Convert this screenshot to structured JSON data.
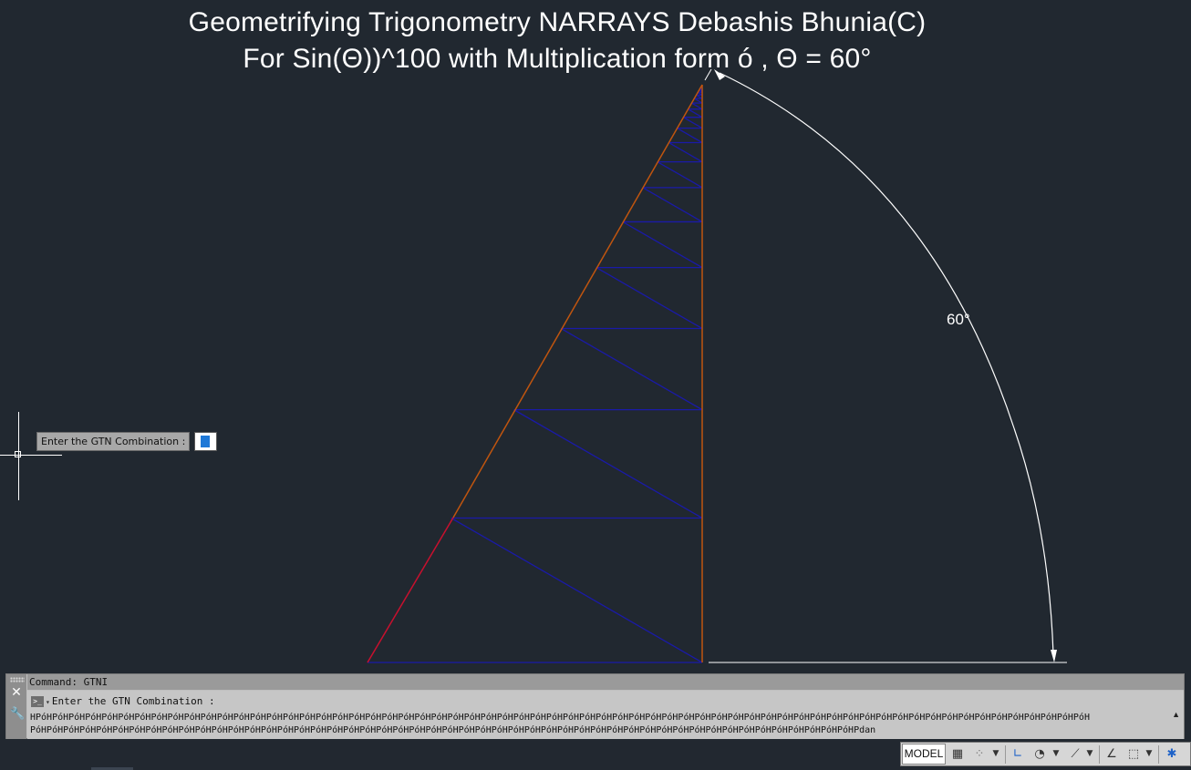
{
  "drawing": {
    "title_line_1": "Geometrifying Trigonometry NARRAYS Debashis Bhunia(C)",
    "title_line_2": "For Sin(Θ))^100 with Multiplication form ó , Θ = 60°",
    "angle_label": "60°",
    "colors": {
      "background": "#212830",
      "hypotenuse_upper": "#c0550f",
      "hypotenuse_lower": "#c8102e",
      "vertical_side": "#c0550f",
      "zigzag": "#1a1aa8",
      "dimension": "#ffffff"
    }
  },
  "dynamic_input": {
    "prompt": "Enter the GTN Combination :",
    "value": ""
  },
  "command_line": {
    "history": "Command: GTNI",
    "prompt": "Enter the GTN Combination :",
    "input_line_1": "HPóHPóHPóHPóHPóHPóHPóHPóHPóHPóHPóHPóHPóHPóHPóHPóHPóHPóHPóHPóHPóHPóHPóHPóHPóHPóHPóHPóHPóHPóHPóHPóHPóHPóHPóHPóHPóHPóHPóHPóHPóHPóHPóHPóHPóHPóHPóHPóHPóHPóHPóHPóHPóHPóHPóHPóHPóHPóHPóHPóHPóHPóHPóHPóH",
    "input_line_2": "PóHPóHPóHPóHPóHPóHPóHPóHPóHPóHPóHPóHPóHPóHPóHPóHPóHPóHPóHPóHPóHPóHPóHPóHPóHPóHPóHPóHPóHPóHPóHPóHPóHPóHPóHPóHPóHPóHPóHPóHPóHPóHPóHPóHPóHPóHPóHPóHPóHPóHPdan",
    "icons": [
      "close-icon",
      "customize-wrench-icon",
      "command-prompt-icon"
    ]
  },
  "status_bar": {
    "model_label": "MODEL",
    "icons": [
      "grid-icon",
      "snap-icon",
      "ortho-icon",
      "polar-icon",
      "isodraft-icon",
      "osnap-icon",
      "annotation-icon",
      "workspace-icon"
    ]
  }
}
